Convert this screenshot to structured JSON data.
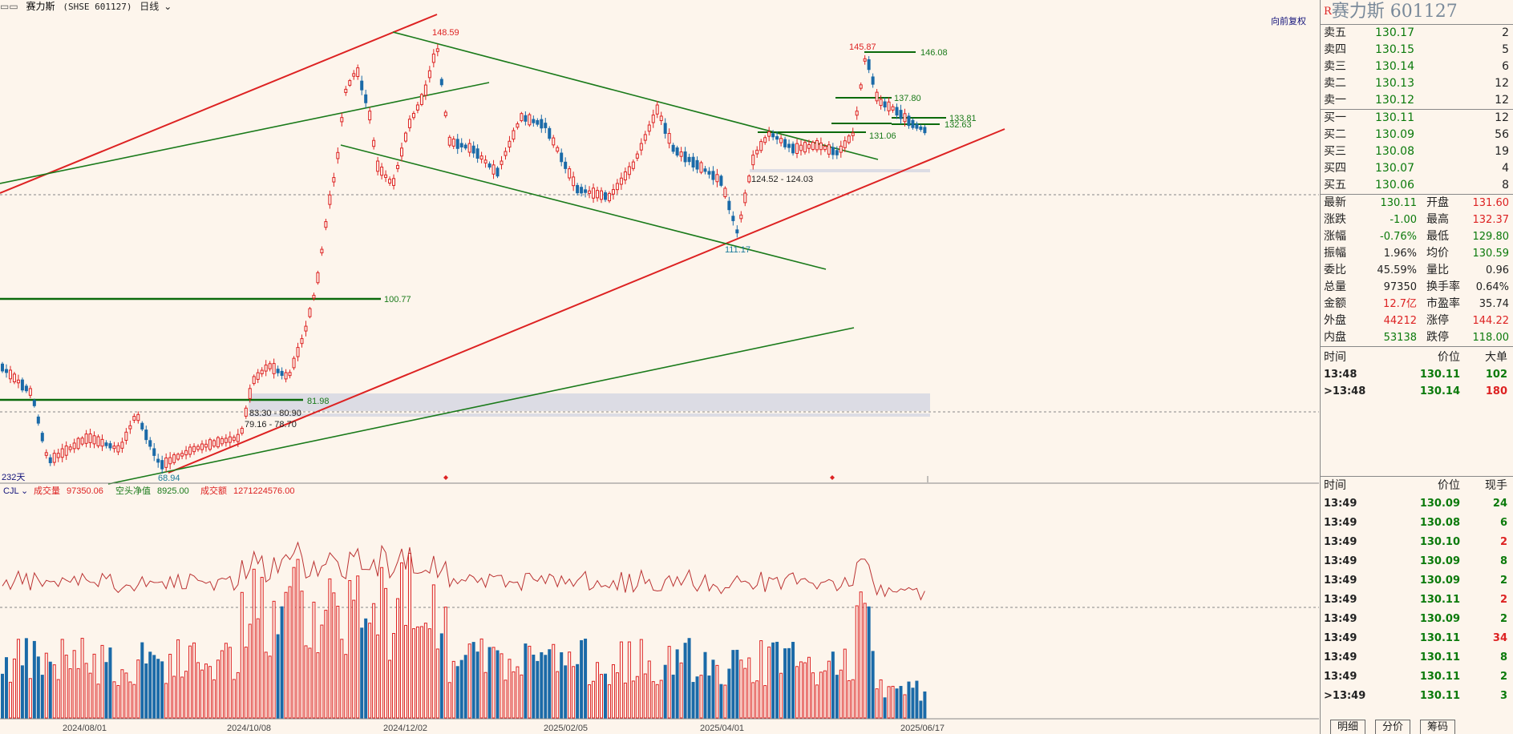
{
  "topbar": {
    "title": "赛力斯",
    "code": "(SHSE 601127)",
    "period": "日线",
    "restore": "向前复权"
  },
  "main_chart": {
    "bar_count": "232天",
    "level_labels": [
      "148.59",
      "146.08",
      "145.87",
      "137.80",
      "133.81",
      "132.63",
      "131.06",
      "124.52 - 124.03",
      "111.17",
      "100.77",
      "81.98",
      "83.30 - 80.90",
      "79.16 - 78.70",
      "68.94"
    ],
    "x_dates": [
      "2024/08/01",
      "2024/10/08",
      "2024/12/02",
      "2025/02/05",
      "2025/04/01",
      "2025/06/17"
    ]
  },
  "indicator": {
    "name": "CJL",
    "vol_label": "成交量",
    "vol_value": "97350.06",
    "short_label": "空头净值",
    "short_value": "8925.00",
    "amount_label": "成交额",
    "amount_value": "1271224576.00"
  },
  "panel": {
    "title": "赛力斯 601127",
    "badge": "R",
    "asks": [
      {
        "label": "卖五",
        "price": "130.17",
        "vol": "2"
      },
      {
        "label": "卖四",
        "price": "130.15",
        "vol": "5"
      },
      {
        "label": "卖三",
        "price": "130.14",
        "vol": "6"
      },
      {
        "label": "卖二",
        "price": "130.13",
        "vol": "12"
      },
      {
        "label": "卖一",
        "price": "130.12",
        "vol": "12"
      }
    ],
    "bids": [
      {
        "label": "买一",
        "price": "130.11",
        "vol": "12"
      },
      {
        "label": "买二",
        "price": "130.09",
        "vol": "56"
      },
      {
        "label": "买三",
        "price": "130.08",
        "vol": "19"
      },
      {
        "label": "买四",
        "price": "130.07",
        "vol": "4"
      },
      {
        "label": "买五",
        "price": "130.06",
        "vol": "8"
      }
    ],
    "stats": [
      {
        "l1": "最新",
        "v1": "130.11",
        "c1": "g",
        "l2": "开盘",
        "v2": "131.60",
        "c2": "r"
      },
      {
        "l1": "涨跌",
        "v1": "-1.00",
        "c1": "g",
        "l2": "最高",
        "v2": "132.37",
        "c2": "r"
      },
      {
        "l1": "涨幅",
        "v1": "-0.76%",
        "c1": "g",
        "l2": "最低",
        "v2": "129.80",
        "c2": "g"
      },
      {
        "l1": "振幅",
        "v1": "1.96%",
        "c1": "k",
        "l2": "均价",
        "v2": "130.59",
        "c2": "g"
      },
      {
        "l1": "委比",
        "v1": "45.59%",
        "c1": "k",
        "l2": "量比",
        "v2": "0.96",
        "c2": "k"
      },
      {
        "l1": "总量",
        "v1": "97350",
        "c1": "k",
        "l2": "换手率",
        "v2": "0.64%",
        "c2": "k"
      },
      {
        "l1": "金额",
        "v1": "12.7亿",
        "c1": "r",
        "l2": "市盈率",
        "v2": "35.74",
        "c2": "k"
      },
      {
        "l1": "外盘",
        "v1": "44212",
        "c1": "r",
        "l2": "涨停",
        "v2": "144.22",
        "c2": "r"
      },
      {
        "l1": "内盘",
        "v1": "53138",
        "c1": "g",
        "l2": "跌停",
        "v2": "118.00",
        "c2": "g"
      }
    ],
    "big_header": {
      "time": "时间",
      "price": "价位",
      "vol": "大单"
    },
    "big_orders": [
      {
        "time": "13:48",
        "price": "130.11",
        "vol": "102",
        "c": "g"
      },
      {
        "time": ">13:48",
        "price": "130.14",
        "vol": "180",
        "c": "r"
      }
    ],
    "tick_header": {
      "time": "时间",
      "price": "价位",
      "vol": "现手"
    },
    "ticks": [
      {
        "time": "13:49",
        "price": "130.09",
        "vol": "24",
        "c": "g"
      },
      {
        "time": "13:49",
        "price": "130.08",
        "vol": "6",
        "c": "g"
      },
      {
        "time": "13:49",
        "price": "130.10",
        "vol": "2",
        "c": "r"
      },
      {
        "time": "13:49",
        "price": "130.09",
        "vol": "8",
        "c": "g"
      },
      {
        "time": "13:49",
        "price": "130.09",
        "vol": "2",
        "c": "g"
      },
      {
        "time": "13:49",
        "price": "130.11",
        "vol": "2",
        "c": "r"
      },
      {
        "time": "13:49",
        "price": "130.09",
        "vol": "2",
        "c": "g"
      },
      {
        "time": "13:49",
        "price": "130.11",
        "vol": "34",
        "c": "r"
      },
      {
        "time": "13:49",
        "price": "130.11",
        "vol": "8",
        "c": "g"
      },
      {
        "time": "13:49",
        "price": "130.11",
        "vol": "2",
        "c": "g"
      },
      {
        "time": ">13:49",
        "price": "130.11",
        "vol": "3",
        "c": "g"
      }
    ],
    "tabs": [
      "明细",
      "分价",
      "筹码"
    ]
  }
}
